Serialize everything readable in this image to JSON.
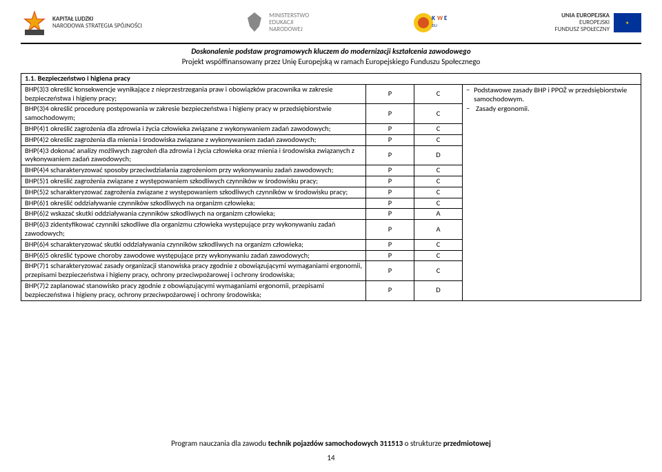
{
  "header": {
    "logo1_top": "KAPITAŁ LUDZKI",
    "logo1_bottom": "NARODOWA STRATEGIA SPÓJNOŚCI",
    "logo2_l1": "MINISTERSTWO",
    "logo2_l2": "EDUKACJI",
    "logo2_l3": "NARODOWEJ",
    "logo3": "KOWEZiU",
    "logo4_l1": "UNIA EUROPEJSKA",
    "logo4_l2": "EUROPEJSKI",
    "logo4_l3": "FUNDUSZ SPOŁECZNY",
    "subtitle1": "Doskonalenie podstaw programowych kluczem do modernizacji kształcenia zawodowego",
    "subtitle2": "Projekt współfinansowany przez Unię Europejską w ramach Europejskiego Funduszu Społecznego"
  },
  "section_title": "1.1. Bezpieczeństwo i higiena pracy",
  "rows": [
    {
      "desc": "BHP(3)3 określić konsekwencje wynikające z nieprzestrzegania praw i obowiązków pracownika w zakresie bezpieczeństwa i higieny pracy;",
      "c1": "P",
      "c2": "C"
    },
    {
      "desc": "BHP(3)4 określić procedurę postępowania w zakresie bezpieczeństwa i higieny pracy w przedsiębiorstwie samochodowym;",
      "c1": "P",
      "c2": "C"
    },
    {
      "desc": "BHP(4)1 określić zagrożenia dla zdrowia i życia człowieka związane z wykonywaniem zadań zawodowych;",
      "c1": "P",
      "c2": "C"
    },
    {
      "desc": "BHP(4)2 określić zagrożenia dla mienia i środowiska związane z wykonywaniem zadań zawodowych;",
      "c1": "P",
      "c2": "C"
    },
    {
      "desc": "BHP(4)3 dokonać analizy możliwych zagrożeń dla zdrowia i życia człowieka oraz mienia i środowiska związanych z wykonywaniem zadań zawodowych;",
      "c1": "P",
      "c2": "D"
    },
    {
      "desc": "BHP(4)4 scharakteryzować sposoby przeciwdziałania zagrożeniom przy wykonywaniu zadań zawodowych;",
      "c1": "P",
      "c2": "C"
    },
    {
      "desc": "BHP(5)1 określić zagrożenia związane z występowaniem szkodliwych czynników w środowisku pracy;",
      "c1": "P",
      "c2": "C"
    },
    {
      "desc": "BHP(5)2 scharakteryzować zagrożenia związane z występowaniem szkodliwych czynników w środowisku pracy;",
      "c1": "P",
      "c2": "C"
    },
    {
      "desc": "BHP(6)1 określić oddziaływanie czynników szkodliwych na organizm człowieka;",
      "c1": "P",
      "c2": "C"
    },
    {
      "desc": "BHP(6)2 wskazać skutki oddziaływania czynników szkodliwych na organizm człowieka;",
      "c1": "P",
      "c2": "A"
    },
    {
      "desc": "BHP(6)3 zidentyfikować czynniki szkodliwe dla organizmu człowieka występujące przy wykonywaniu zadań zawodowych;",
      "c1": "P",
      "c2": "A"
    },
    {
      "desc": "BHP(6)4 scharakteryzować skutki oddziaływania czynników szkodliwych na organizm człowieka;",
      "c1": "P",
      "c2": "C"
    },
    {
      "desc": "BHP(6)5 określić typowe choroby zawodowe występujące przy wykonywaniu zadań zawodowych;",
      "c1": "P",
      "c2": "C"
    },
    {
      "desc": "BHP(7)1 scharakteryzować zasady organizacji stanowiska pracy zgodnie z obowiązującymi wymaganiami ergonomii, przepisami bezpieczeństwa i higieny pracy, ochrony przeciwpożarowej i ochrony środowiska;",
      "c1": "P",
      "c2": "C"
    },
    {
      "desc": "BHP(7)2 zaplanować stanowisko pracy zgodnie z obowiązującymi wymaganiami ergonomii, przepisami bezpieczeństwa i higieny pracy, ochrony przeciwpożarowej i ochrony środowiska;",
      "c1": "P",
      "c2": "D"
    }
  ],
  "notes": [
    "Podstawowe zasady BHP i PPOŻ w przedsiębiorstwie samochodowym.",
    "Zasady ergonomii."
  ],
  "footer": {
    "program_prefix": "Program nauczania dla zawodu ",
    "program_bold": "technik pojazdów samochodowych 311513",
    "program_suffix": " o strukturze ",
    "program_bold2": "przedmiotowej",
    "page": "14"
  },
  "colors": {
    "border": "#000000",
    "text": "#000000",
    "bg": "#ffffff"
  }
}
